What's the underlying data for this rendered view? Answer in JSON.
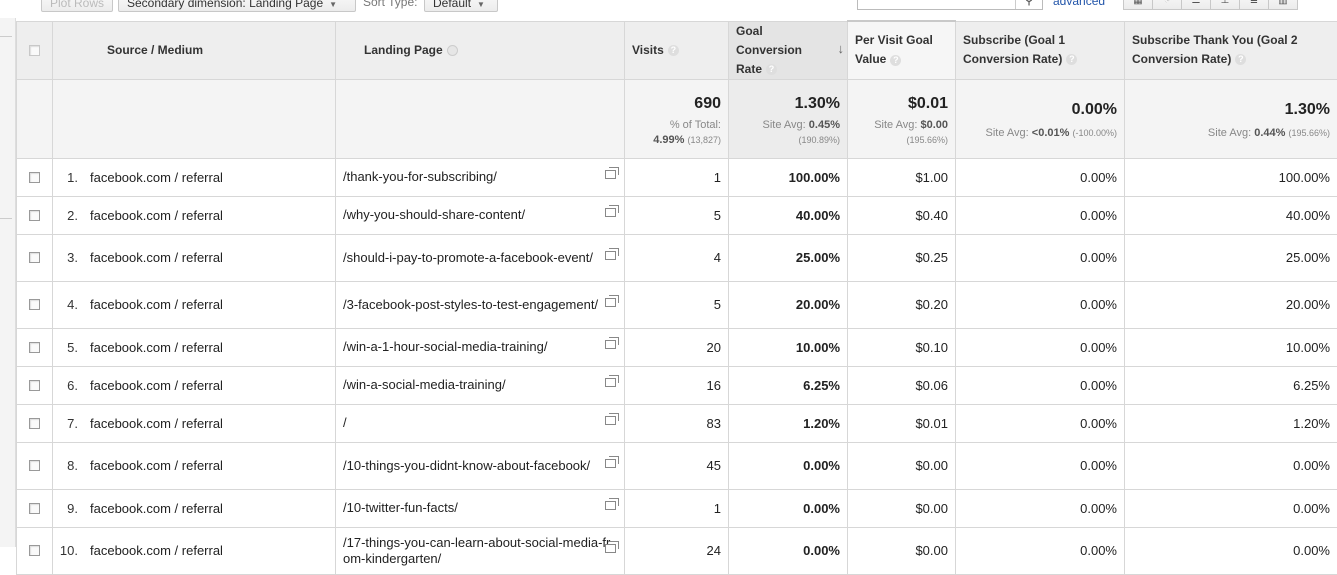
{
  "toolbar": {
    "plot_rows": "Plot Rows",
    "secondary_dimension": "Secondary dimension: Landing Page",
    "sort_type_label": "Sort Type:",
    "sort_type_value": "Default",
    "advanced": "advanced"
  },
  "columns": {
    "source_medium": "Source / Medium",
    "landing_page": "Landing Page",
    "visits": "Visits",
    "goal_conversion_rate": "Goal Conversion Rate",
    "per_visit_goal_value": "Per Visit Goal Value",
    "subscribe_goal1": "Subscribe (Goal 1 Conversion Rate)",
    "subscribe_thank_you_goal2": "Subscribe Thank You (Goal 2 Conversion Rate)"
  },
  "totals": {
    "visits": "690",
    "visits_pct_label": "% of Total:",
    "visits_pct": "4.99%",
    "visits_pct_total": "(13,827)",
    "gcr": "1.30%",
    "gcr_avg_label": "Site Avg:",
    "gcr_avg": "0.45%",
    "gcr_avg_diff": "(190.89%)",
    "pvgv": "$0.01",
    "pvgv_avg_label": "Site Avg:",
    "pvgv_avg": "$0.00",
    "pvgv_avg_diff": "(195.66%)",
    "g1": "0.00%",
    "g1_avg_label": "Site Avg:",
    "g1_avg": "<0.01%",
    "g1_avg_diff": "(-100.00%)",
    "g2": "1.30%",
    "g2_avg_label": "Site Avg:",
    "g2_avg": "0.44%",
    "g2_avg_diff": "(195.66%)"
  },
  "rows": [
    {
      "n": "1.",
      "source": "facebook.com / referral",
      "landing": "/thank-you-for-subscribing/",
      "visits": "1",
      "gcr": "100.00%",
      "pvgv": "$1.00",
      "g1": "0.00%",
      "g2": "100.00%"
    },
    {
      "n": "2.",
      "source": "facebook.com / referral",
      "landing": "/why-you-should-share-content/",
      "visits": "5",
      "gcr": "40.00%",
      "pvgv": "$0.40",
      "g1": "0.00%",
      "g2": "40.00%"
    },
    {
      "n": "3.",
      "source": "facebook.com / referral",
      "landing": "/should-i-pay-to-promote-a-facebook-event/",
      "visits": "4",
      "gcr": "25.00%",
      "pvgv": "$0.25",
      "g1": "0.00%",
      "g2": "25.00%"
    },
    {
      "n": "4.",
      "source": "facebook.com / referral",
      "landing": "/3-facebook-post-styles-to-test-engagement/",
      "visits": "5",
      "gcr": "20.00%",
      "pvgv": "$0.20",
      "g1": "0.00%",
      "g2": "20.00%"
    },
    {
      "n": "5.",
      "source": "facebook.com / referral",
      "landing": "/win-a-1-hour-social-media-training/",
      "visits": "20",
      "gcr": "10.00%",
      "pvgv": "$0.10",
      "g1": "0.00%",
      "g2": "10.00%"
    },
    {
      "n": "6.",
      "source": "facebook.com / referral",
      "landing": "/win-a-social-media-training/",
      "visits": "16",
      "gcr": "6.25%",
      "pvgv": "$0.06",
      "g1": "0.00%",
      "g2": "6.25%"
    },
    {
      "n": "7.",
      "source": "facebook.com / referral",
      "landing": "/",
      "visits": "83",
      "gcr": "1.20%",
      "pvgv": "$0.01",
      "g1": "0.00%",
      "g2": "1.20%"
    },
    {
      "n": "8.",
      "source": "facebook.com / referral",
      "landing": "/10-things-you-didnt-know-about-facebook/",
      "visits": "45",
      "gcr": "0.00%",
      "pvgv": "$0.00",
      "g1": "0.00%",
      "g2": "0.00%"
    },
    {
      "n": "9.",
      "source": "facebook.com / referral",
      "landing": "/10-twitter-fun-facts/",
      "visits": "1",
      "gcr": "0.00%",
      "pvgv": "$0.00",
      "g1": "0.00%",
      "g2": "0.00%"
    },
    {
      "n": "10.",
      "source": "facebook.com / referral",
      "landing": "/17-things-you-can-learn-about-social-media-from-kindergarten/",
      "visits": "24",
      "gcr": "0.00%",
      "pvgv": "$0.00",
      "g1": "0.00%",
      "g2": "0.00%"
    }
  ]
}
